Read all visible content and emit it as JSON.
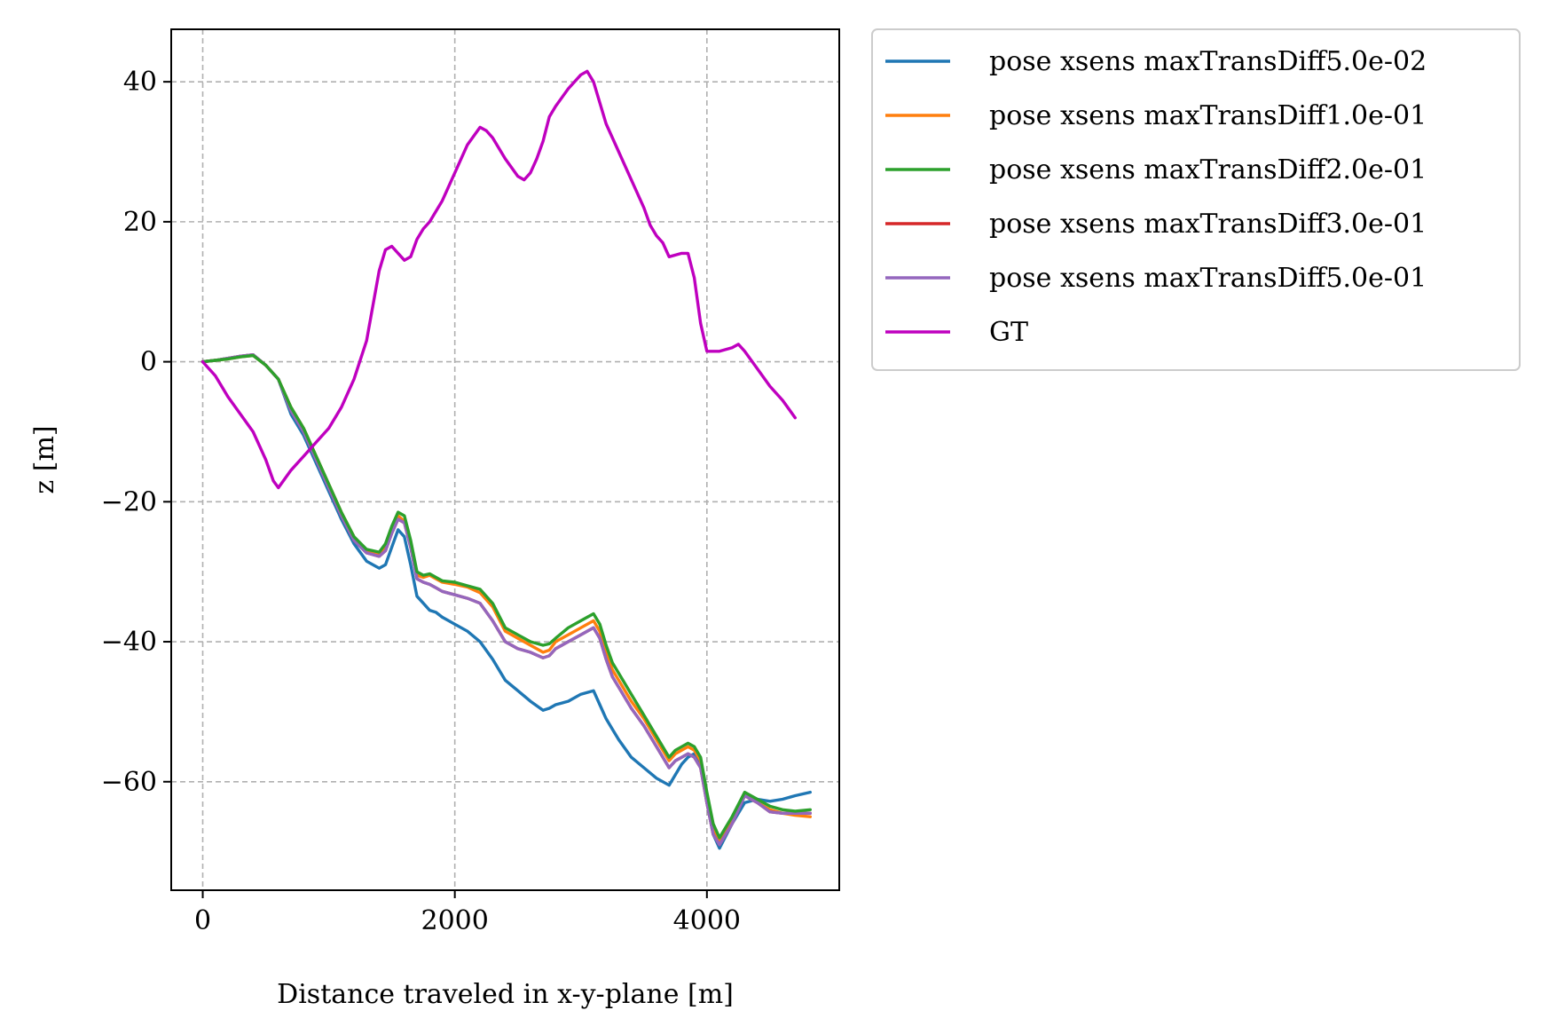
{
  "chart_data": {
    "type": "line",
    "title": "",
    "xlabel": "Distance traveled in x-y-plane [m]",
    "ylabel": "z [m]",
    "xlim": [
      -250,
      5050
    ],
    "ylim": [
      -75.5,
      47.5
    ],
    "xticks": [
      0,
      2000,
      4000
    ],
    "yticks": [
      40,
      20,
      0,
      -20,
      -40,
      -60
    ],
    "xtick_labels": [
      "0",
      "2000",
      "4000"
    ],
    "ytick_labels": [
      "40",
      "20",
      "0",
      "−20",
      "−40",
      "−60"
    ],
    "grid": true,
    "legend_position": "outside-upper-right",
    "series": [
      {
        "name": "pose xsens maxTransDiff5.0e-02",
        "color": "#1f77b4",
        "x": [
          0,
          100,
          200,
          300,
          400,
          500,
          600,
          650,
          700,
          800,
          900,
          1000,
          1100,
          1200,
          1300,
          1400,
          1450,
          1500,
          1550,
          1600,
          1650,
          1700,
          1750,
          1800,
          1850,
          1900,
          2000,
          2100,
          2200,
          2300,
          2400,
          2500,
          2600,
          2700,
          2750,
          2800,
          2900,
          3000,
          3100,
          3150,
          3200,
          3250,
          3300,
          3400,
          3500,
          3600,
          3700,
          3750,
          3800,
          3850,
          3900,
          3950,
          4000,
          4050,
          4100,
          4200,
          4300,
          4400,
          4500,
          4600,
          4700,
          4820
        ],
        "y": [
          0,
          0.2,
          0.5,
          0.8,
          1.0,
          -0.5,
          -2.5,
          -5.0,
          -7.5,
          -10.5,
          -14.5,
          -18.5,
          -22.5,
          -26.0,
          -28.5,
          -29.5,
          -29.0,
          -26.5,
          -24.0,
          -25.0,
          -29.0,
          -33.5,
          -34.5,
          -35.5,
          -35.8,
          -36.5,
          -37.5,
          -38.5,
          -40.0,
          -42.5,
          -45.5,
          -47.0,
          -48.5,
          -49.8,
          -49.5,
          -49.0,
          -48.5,
          -47.5,
          -47.0,
          -49.0,
          -51.0,
          -52.5,
          -54.0,
          -56.5,
          -58.0,
          -59.5,
          -60.5,
          -59.0,
          -57.5,
          -56.5,
          -56.0,
          -57.5,
          -63.0,
          -67.5,
          -69.5,
          -66.0,
          -63.0,
          -62.5,
          -62.8,
          -62.5,
          -62.0,
          -61.5
        ]
      },
      {
        "name": "pose xsens maxTransDiff1.0e-01",
        "color": "#ff7f0e",
        "x": [
          0,
          100,
          200,
          300,
          400,
          500,
          600,
          650,
          700,
          800,
          900,
          1000,
          1100,
          1200,
          1300,
          1400,
          1450,
          1500,
          1550,
          1600,
          1650,
          1700,
          1750,
          1800,
          1850,
          1900,
          2000,
          2100,
          2200,
          2300,
          2400,
          2500,
          2600,
          2700,
          2750,
          2800,
          2900,
          3000,
          3100,
          3150,
          3200,
          3250,
          3300,
          3400,
          3500,
          3600,
          3700,
          3750,
          3800,
          3850,
          3900,
          3950,
          4000,
          4050,
          4100,
          4200,
          4300,
          4400,
          4500,
          4600,
          4700,
          4820
        ],
        "y": [
          0,
          0.2,
          0.4,
          0.7,
          0.9,
          -0.5,
          -2.5,
          -4.5,
          -6.5,
          -9.5,
          -13.5,
          -17.5,
          -21.5,
          -25.0,
          -27.0,
          -27.5,
          -26.5,
          -24.0,
          -22.0,
          -22.8,
          -26.0,
          -30.5,
          -30.8,
          -30.5,
          -31.0,
          -31.5,
          -31.8,
          -32.2,
          -33.0,
          -35.0,
          -38.5,
          -39.5,
          -40.5,
          -41.5,
          -41.2,
          -40.0,
          -39.0,
          -38.0,
          -37.0,
          -38.5,
          -41.5,
          -44.0,
          -45.5,
          -48.5,
          -51.0,
          -54.0,
          -57.0,
          -56.0,
          -55.5,
          -55.0,
          -55.5,
          -57.0,
          -62.0,
          -66.5,
          -68.5,
          -65.5,
          -62.0,
          -63.0,
          -64.0,
          -64.5,
          -64.8,
          -65.0
        ]
      },
      {
        "name": "pose xsens maxTransDiff2.0e-01",
        "color": "#2ca02c",
        "x": [
          0,
          100,
          200,
          300,
          400,
          500,
          600,
          650,
          700,
          800,
          900,
          1000,
          1100,
          1200,
          1300,
          1400,
          1450,
          1500,
          1550,
          1600,
          1650,
          1700,
          1750,
          1800,
          1850,
          1900,
          2000,
          2100,
          2200,
          2300,
          2400,
          2500,
          2600,
          2700,
          2750,
          2800,
          2900,
          3000,
          3100,
          3150,
          3200,
          3250,
          3300,
          3400,
          3500,
          3600,
          3700,
          3750,
          3800,
          3850,
          3900,
          3950,
          4000,
          4050,
          4100,
          4200,
          4300,
          4400,
          4500,
          4600,
          4700,
          4820
        ],
        "y": [
          0,
          0.2,
          0.4,
          0.7,
          0.9,
          -0.5,
          -2.5,
          -4.5,
          -6.5,
          -9.5,
          -13.5,
          -17.5,
          -21.5,
          -25.0,
          -26.8,
          -27.2,
          -26.0,
          -23.5,
          -21.5,
          -22.0,
          -25.5,
          -30.0,
          -30.5,
          -30.3,
          -30.8,
          -31.3,
          -31.5,
          -32.0,
          -32.5,
          -34.5,
          -38.0,
          -39.0,
          -40.0,
          -40.5,
          -40.3,
          -39.5,
          -38.0,
          -37.0,
          -36.0,
          -37.5,
          -40.5,
          -43.0,
          -44.5,
          -47.5,
          -50.5,
          -53.5,
          -56.5,
          -55.5,
          -55.0,
          -54.5,
          -55.0,
          -56.5,
          -61.5,
          -66.0,
          -68.0,
          -65.0,
          -61.5,
          -62.5,
          -63.5,
          -64.0,
          -64.2,
          -64.0
        ]
      },
      {
        "name": "pose xsens maxTransDiff3.0e-01",
        "color": "#d62728",
        "x": [
          0,
          100,
          200,
          300,
          400,
          500,
          600,
          650,
          700,
          800,
          900,
          1000,
          1100,
          1200,
          1300,
          1400,
          1450,
          1500,
          1550,
          1600,
          1650,
          1700,
          1750,
          1800,
          1850,
          1900,
          2000,
          2100,
          2200,
          2300,
          2400,
          2500,
          2600,
          2700,
          2750,
          2800,
          2900,
          3000,
          3100,
          3150,
          3200,
          3250,
          3300,
          3400,
          3500,
          3600,
          3700,
          3750,
          3800,
          3850,
          3900,
          3950,
          4000,
          4050,
          4100,
          4200,
          4300,
          4400,
          4500,
          4600,
          4700,
          4820
        ],
        "y": [
          0,
          0.2,
          0.5,
          0.8,
          1.0,
          -0.5,
          -2.5,
          -4.8,
          -7.0,
          -10.0,
          -14.0,
          -18.0,
          -22.0,
          -25.5,
          -27.3,
          -27.8,
          -27.0,
          -24.5,
          -22.5,
          -23.0,
          -26.5,
          -31.0,
          -31.5,
          -31.8,
          -32.3,
          -32.8,
          -33.3,
          -33.8,
          -34.5,
          -37.0,
          -40.0,
          -41.0,
          -41.5,
          -42.3,
          -42.0,
          -41.0,
          -40.0,
          -39.0,
          -38.0,
          -39.5,
          -42.5,
          -45.0,
          -46.5,
          -49.5,
          -52.0,
          -55.0,
          -58.0,
          -57.0,
          -56.5,
          -56.0,
          -56.5,
          -58.0,
          -63.0,
          -67.5,
          -69.0,
          -66.0,
          -62.0,
          -63.0,
          -64.3,
          -64.5,
          -64.5,
          -64.5
        ]
      },
      {
        "name": "pose xsens maxTransDiff5.0e-01",
        "color": "#9467bd",
        "x": [
          0,
          100,
          200,
          300,
          400,
          500,
          600,
          650,
          700,
          800,
          900,
          1000,
          1100,
          1200,
          1300,
          1400,
          1450,
          1500,
          1550,
          1600,
          1650,
          1700,
          1750,
          1800,
          1850,
          1900,
          2000,
          2100,
          2200,
          2300,
          2400,
          2500,
          2600,
          2700,
          2750,
          2800,
          2900,
          3000,
          3100,
          3150,
          3200,
          3250,
          3300,
          3400,
          3500,
          3600,
          3700,
          3750,
          3800,
          3850,
          3900,
          3950,
          4000,
          4050,
          4100,
          4200,
          4300,
          4400,
          4500,
          4600,
          4700,
          4820
        ],
        "y": [
          0,
          0.2,
          0.5,
          0.8,
          1.0,
          -0.5,
          -2.5,
          -4.8,
          -7.0,
          -10.0,
          -14.0,
          -18.0,
          -22.0,
          -25.5,
          -27.3,
          -27.8,
          -27.0,
          -24.5,
          -22.5,
          -23.0,
          -26.5,
          -31.0,
          -31.5,
          -31.8,
          -32.3,
          -32.8,
          -33.3,
          -33.8,
          -34.5,
          -37.0,
          -40.0,
          -41.0,
          -41.5,
          -42.3,
          -42.0,
          -41.0,
          -40.0,
          -39.0,
          -38.0,
          -39.5,
          -42.5,
          -45.0,
          -46.5,
          -49.5,
          -52.0,
          -55.0,
          -58.0,
          -57.0,
          -56.5,
          -56.0,
          -56.5,
          -58.0,
          -63.0,
          -67.5,
          -69.0,
          -66.0,
          -62.0,
          -63.0,
          -64.3,
          -64.5,
          -64.5,
          -64.5
        ]
      },
      {
        "name": "GT",
        "color": "#bf00bf",
        "x": [
          0,
          100,
          200,
          300,
          400,
          500,
          560,
          600,
          640,
          700,
          800,
          900,
          1000,
          1100,
          1200,
          1300,
          1400,
          1450,
          1500,
          1550,
          1600,
          1650,
          1700,
          1750,
          1800,
          1900,
          2000,
          2100,
          2200,
          2250,
          2300,
          2400,
          2500,
          2550,
          2600,
          2650,
          2700,
          2750,
          2800,
          2900,
          3000,
          3050,
          3100,
          3150,
          3200,
          3300,
          3400,
          3500,
          3550,
          3600,
          3650,
          3700,
          3800,
          3850,
          3900,
          3950,
          4000,
          4050,
          4100,
          4200,
          4250,
          4300,
          4400,
          4500,
          4600,
          4700
        ],
        "y": [
          0,
          -2.0,
          -5.0,
          -7.5,
          -10.0,
          -14.0,
          -17.0,
          -18.0,
          -17.0,
          -15.5,
          -13.5,
          -11.5,
          -9.5,
          -6.5,
          -2.5,
          3.0,
          13.0,
          16.0,
          16.5,
          15.5,
          14.5,
          15.0,
          17.5,
          19.0,
          20.0,
          23.0,
          27.0,
          31.0,
          33.5,
          33.0,
          32.0,
          29.0,
          26.5,
          26.0,
          27.0,
          29.0,
          31.5,
          35.0,
          36.5,
          39.0,
          41.0,
          41.5,
          40.0,
          37.0,
          34.0,
          30.0,
          26.0,
          22.0,
          19.5,
          18.0,
          17.0,
          15.0,
          15.5,
          15.5,
          12.0,
          5.5,
          1.5,
          1.5,
          1.5,
          2.0,
          2.5,
          1.5,
          -1.0,
          -3.5,
          -5.5,
          -8.0
        ]
      }
    ]
  }
}
